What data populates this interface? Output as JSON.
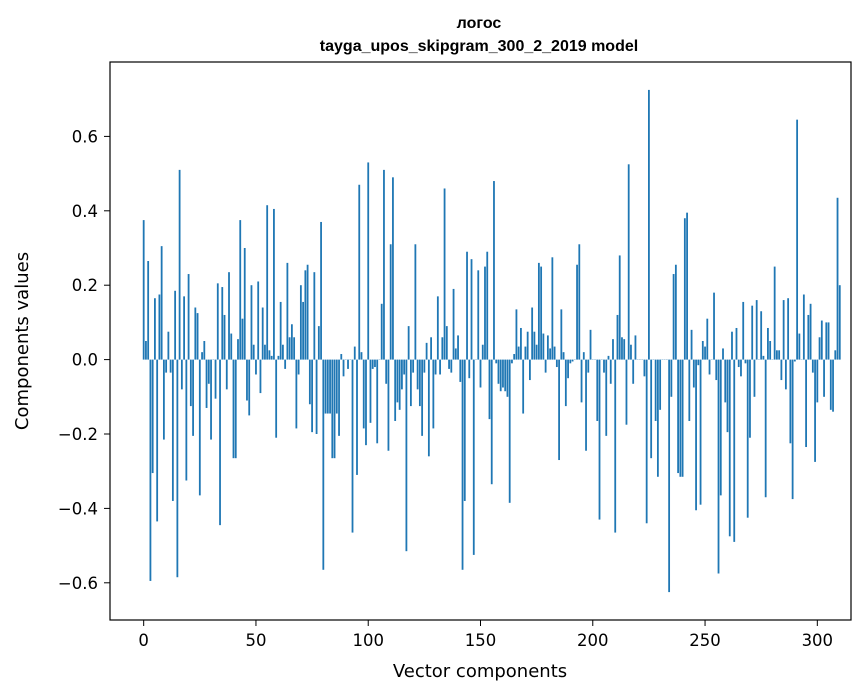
{
  "chart_data": {
    "type": "bar",
    "title_line1": "логос",
    "title_line2": "tayga_upos_skipgram_300_2_2019 model",
    "xlabel": "Vector components",
    "ylabel": "Components values",
    "xlim": [
      -15,
      315
    ],
    "ylim": [
      -0.7,
      0.8
    ],
    "xticks": [
      0,
      50,
      100,
      150,
      200,
      250,
      300
    ],
    "xtick_labels": [
      "0",
      "50",
      "100",
      "150",
      "200",
      "250",
      "300"
    ],
    "yticks": [
      -0.6,
      -0.4,
      -0.2,
      0.0,
      0.2,
      0.4,
      0.6
    ],
    "ytick_labels": [
      "−0.6",
      "−0.4",
      "−0.2",
      "0.0",
      "0.2",
      "0.4",
      "0.6"
    ],
    "color": "#1f77b4",
    "values": [
      0.375,
      0.05,
      0.265,
      -0.595,
      -0.305,
      0.165,
      -0.435,
      0.175,
      0.305,
      -0.215,
      -0.035,
      0.075,
      -0.035,
      -0.38,
      0.185,
      -0.585,
      0.51,
      -0.08,
      0.17,
      -0.325,
      0.23,
      -0.125,
      -0.205,
      0.14,
      0.125,
      -0.365,
      0.02,
      0.05,
      -0.13,
      -0.065,
      -0.215,
      0.0,
      -0.105,
      0.205,
      -0.445,
      0.195,
      0.12,
      -0.08,
      0.235,
      0.07,
      -0.265,
      -0.265,
      0.055,
      0.375,
      0.11,
      0.3,
      -0.11,
      -0.15,
      0.2,
      0.04,
      -0.04,
      0.21,
      -0.09,
      0.14,
      0.04,
      0.415,
      0.025,
      0.01,
      0.405,
      -0.21,
      0.01,
      0.155,
      0.04,
      -0.025,
      0.26,
      0.06,
      0.095,
      0.06,
      -0.185,
      -0.04,
      0.2,
      0.155,
      0.24,
      0.255,
      -0.12,
      -0.195,
      0.235,
      -0.2,
      0.09,
      0.37,
      -0.565,
      -0.145,
      -0.145,
      -0.145,
      -0.265,
      -0.265,
      -0.145,
      -0.205,
      0.015,
      -0.045,
      0.0,
      -0.025,
      0.0,
      -0.465,
      0.035,
      -0.31,
      0.47,
      0.02,
      -0.185,
      -0.23,
      0.53,
      -0.17,
      -0.025,
      -0.02,
      -0.225,
      0.0,
      0.15,
      0.51,
      -0.065,
      -0.245,
      0.31,
      0.49,
      -0.165,
      -0.115,
      -0.135,
      -0.08,
      -0.04,
      -0.515,
      0.09,
      -0.125,
      -0.035,
      0.31,
      -0.08,
      -0.125,
      -0.205,
      -0.035,
      0.045,
      -0.26,
      0.06,
      -0.185,
      -0.04,
      0.17,
      -0.04,
      0.06,
      0.46,
      0.09,
      -0.025,
      -0.035,
      0.19,
      0.03,
      0.065,
      -0.06,
      -0.565,
      -0.38,
      0.29,
      -0.05,
      0.27,
      -0.525,
      0.0,
      0.24,
      -0.075,
      0.04,
      0.25,
      0.29,
      -0.16,
      -0.335,
      0.48,
      -0.01,
      -0.065,
      -0.085,
      -0.075,
      -0.085,
      -0.1,
      -0.385,
      -0.01,
      0.015,
      0.135,
      0.035,
      0.085,
      -0.145,
      0.035,
      0.075,
      -0.055,
      0.14,
      0.075,
      0.04,
      0.26,
      0.25,
      0.07,
      -0.035,
      0.065,
      0.03,
      0.275,
      0.035,
      -0.02,
      -0.27,
      0.135,
      0.02,
      -0.125,
      -0.05,
      -0.01,
      -0.005,
      0.0,
      0.255,
      0.31,
      -0.115,
      0.02,
      -0.245,
      -0.035,
      0.08,
      0.0,
      0.0,
      -0.165,
      -0.43,
      0.0,
      -0.035,
      -0.205,
      0.01,
      -0.065,
      0.055,
      -0.465,
      0.12,
      0.28,
      0.06,
      0.055,
      -0.175,
      0.525,
      0.04,
      -0.065,
      0.065,
      0.0,
      0.0,
      0.0,
      -0.045,
      -0.44,
      0.725,
      -0.265,
      0.0,
      -0.165,
      -0.315,
      -0.135,
      0.0,
      0.0,
      0.0,
      -0.625,
      -0.1,
      0.23,
      0.255,
      -0.305,
      -0.315,
      -0.315,
      0.38,
      0.395,
      -0.165,
      0.08,
      -0.075,
      -0.405,
      -0.015,
      -0.39,
      0.05,
      0.035,
      0.11,
      -0.04,
      0.0,
      0.18,
      -0.055,
      -0.575,
      -0.365,
      0.03,
      -0.115,
      -0.195,
      -0.475,
      0.075,
      -0.49,
      0.085,
      -0.02,
      -0.045,
      0.155,
      -0.01,
      -0.425,
      -0.21,
      0.145,
      -0.1,
      0.16,
      0.0,
      0.13,
      0.01,
      -0.37,
      0.085,
      0.05,
      0.0,
      0.25,
      0.025,
      0.025,
      -0.055,
      0.16,
      -0.08,
      0.165,
      -0.225,
      -0.375,
      -0.005,
      0.645,
      0.07,
      0.0,
      0.175,
      -0.235,
      0.12,
      0.15,
      -0.035,
      -0.275,
      -0.115,
      0.06,
      0.105,
      -0.1,
      0.1,
      0.1,
      -0.135,
      -0.14,
      0.025,
      0.435,
      0.2
    ]
  }
}
